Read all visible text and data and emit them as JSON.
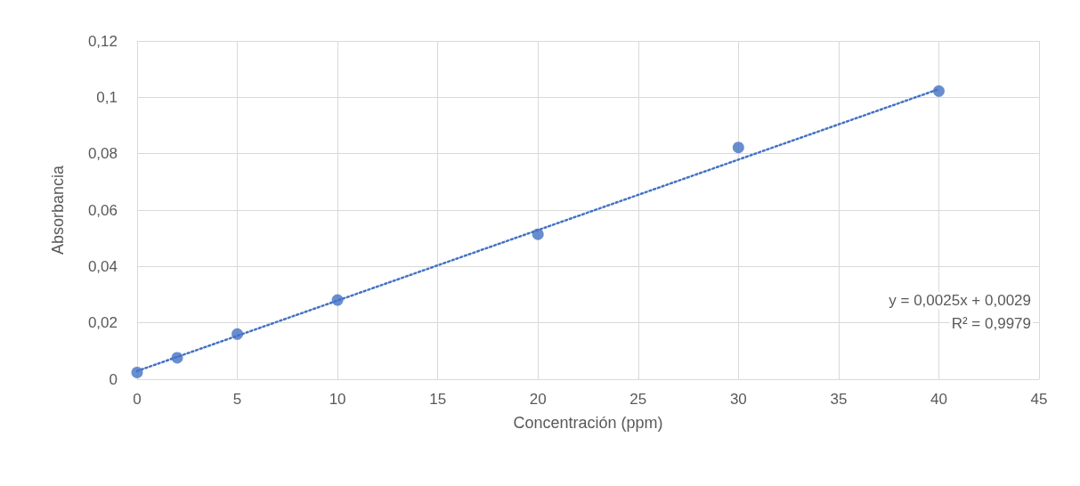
{
  "chart_data": {
    "type": "scatter",
    "xlabel": "Concentración (ppm)",
    "ylabel": "Absorbancia",
    "x": [
      0,
      2,
      5,
      10,
      20,
      30,
      40
    ],
    "series": [
      {
        "color": "#4472c4",
        "marker": "circle",
        "values": [
          0.0024,
          0.0076,
          0.016,
          0.0281,
          0.0514,
          0.0822,
          0.1022
        ]
      },
      {
        "type": "line",
        "color": "#4472c4",
        "marker": "none",
        "line_style": "dotted",
        "x": [
          0,
          40
        ],
        "values": [
          0.0029,
          0.1029
        ]
      }
    ],
    "xlim": [
      0,
      45
    ],
    "xticks": [
      0,
      5,
      10,
      15,
      20,
      25,
      30,
      35,
      40,
      45
    ],
    "ylim": [
      0,
      0.12
    ],
    "yticks": [
      0,
      {
        "value": 0.02,
        "label": "0,02"
      },
      {
        "value": 0.04,
        "label": "0,04"
      },
      {
        "value": 0.06,
        "label": "0,06"
      },
      {
        "value": 0.08,
        "label": "0,08"
      },
      {
        "value": 0.1,
        "label": "0,1"
      },
      {
        "value": 0.12,
        "label": "0,12"
      }
    ],
    "grid": true,
    "annotations": [
      "y = 0,0025x + 0,0029",
      "R² = 0,9979"
    ]
  }
}
